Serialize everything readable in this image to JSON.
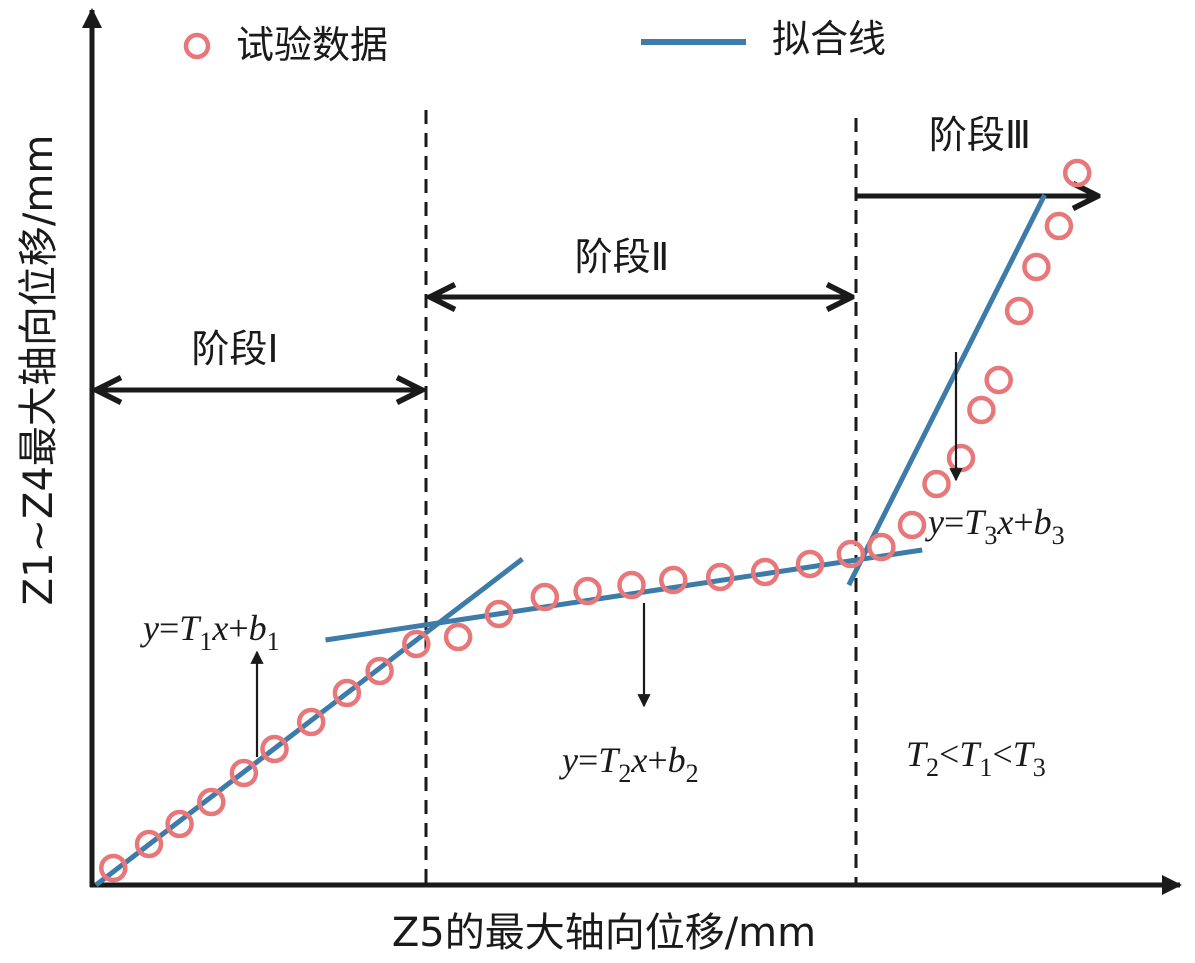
{
  "chart_data": {
    "type": "scatter",
    "xlabel": "Z5的最大轴向位移/mm",
    "ylabel": "Z1~Z4最大轴向位移/mm",
    "legend": {
      "position": "top",
      "items": [
        {
          "label": "试验数据",
          "kind": "marker",
          "color": "#e8777a"
        },
        {
          "label": "拟合线",
          "kind": "line",
          "color": "#3d7ba8"
        }
      ]
    },
    "x_range": [
      0,
      1000
    ],
    "y_range": [
      0,
      800
    ],
    "series": [
      {
        "name": "试验数据",
        "points": [
          [
            17,
            17
          ],
          [
            52,
            41
          ],
          [
            82,
            61
          ],
          [
            113,
            83
          ],
          [
            145,
            112
          ],
          [
            175,
            136
          ],
          [
            211,
            163
          ],
          [
            246,
            192
          ],
          [
            278,
            214
          ],
          [
            314,
            241
          ],
          [
            355,
            248
          ],
          [
            395,
            271
          ],
          [
            440,
            288
          ],
          [
            482,
            294
          ],
          [
            525,
            300
          ],
          [
            566,
            305
          ],
          [
            612,
            308
          ],
          [
            656,
            313
          ],
          [
            700,
            321
          ],
          [
            740,
            331
          ],
          [
            770,
            338
          ],
          [
            800,
            360
          ],
          [
            824,
            401
          ],
          [
            848,
            427
          ],
          [
            868,
            475
          ],
          [
            885,
            505
          ],
          [
            905,
            574
          ],
          [
            922,
            618
          ],
          [
            944,
            659
          ],
          [
            962,
            712
          ]
        ]
      }
    ],
    "fit_lines": [
      {
        "name": "y=T1x+b1",
        "from": [
          0,
          0
        ],
        "to": [
          418,
          326
        ]
      },
      {
        "name": "y=T2x+b2",
        "from": [
          225,
          245
        ],
        "to": [
          810,
          335
        ]
      },
      {
        "name": "y=T3x+b3",
        "from": [
          738,
          300
        ],
        "to": [
          930,
          690
        ]
      }
    ],
    "stage_boundaries": [
      333,
      763
    ],
    "stages": [
      {
        "label": "阶段Ⅰ",
        "start": 0,
        "end": 333
      },
      {
        "label": "阶段Ⅱ",
        "start": 333,
        "end": 763
      },
      {
        "label": "阶段Ⅲ",
        "start": 763,
        "end": 1000
      }
    ],
    "annotations": {
      "eq1": {
        "y": "y",
        "eq": "=",
        "T": "T",
        "sub": "1",
        "x": "x",
        "plus": "+",
        "b": "b"
      },
      "eq2": {
        "y": "y",
        "eq": "=",
        "T": "T",
        "sub": "2",
        "x": "x",
        "plus": "+",
        "b": "b"
      },
      "eq3": {
        "y": "y",
        "eq": "=",
        "T": "T",
        "sub": "3",
        "x": "x",
        "plus": "+",
        "b": "b"
      },
      "ineq": {
        "T": "T",
        "s2": "2",
        "lt": "<",
        "s1": "1",
        "s3": "3"
      }
    },
    "colors": {
      "marker": "#e8777a",
      "fit_line": "#3d7ba8",
      "axis": "#1a1a1a"
    }
  }
}
